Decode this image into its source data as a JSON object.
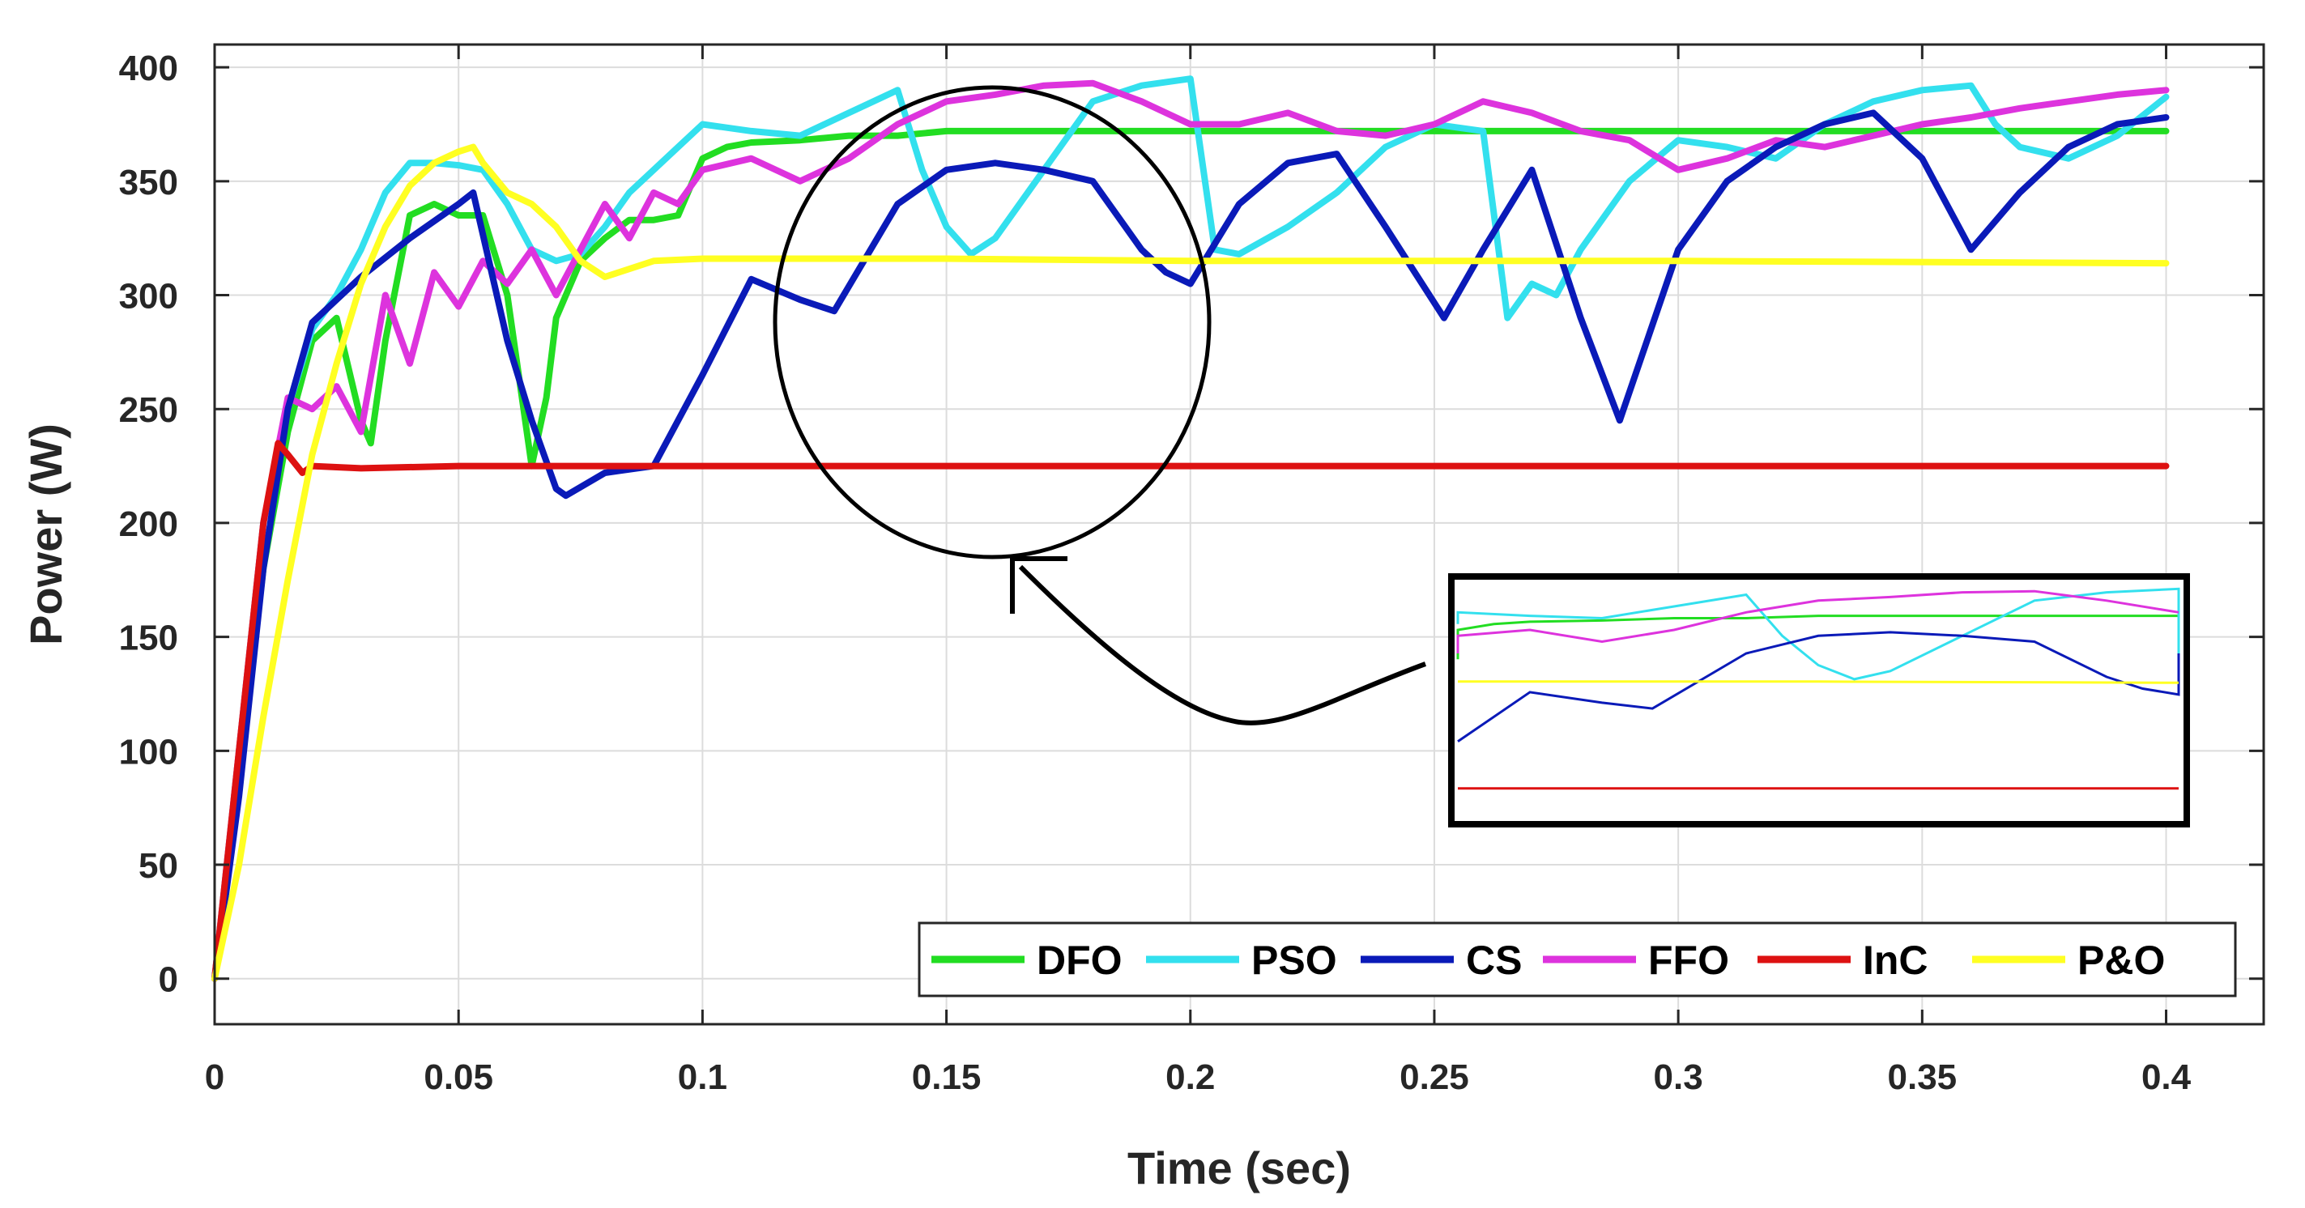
{
  "chart_data": {
    "type": "line",
    "xlabel": "Time (sec)",
    "ylabel": "Power (W)",
    "xlim": [
      0,
      0.42
    ],
    "ylim": [
      -20,
      410
    ],
    "xticks": [
      0,
      0.05,
      0.1,
      0.15,
      0.2,
      0.25,
      0.3,
      0.35,
      0.4
    ],
    "xtick_labels": [
      "0",
      "0.05",
      "0.1",
      "0.15",
      "0.2",
      "0.25",
      "0.3",
      "0.35",
      "0.4"
    ],
    "yticks": [
      0,
      50,
      100,
      150,
      200,
      250,
      300,
      350,
      400
    ],
    "ytick_labels": [
      "0",
      "50",
      "100",
      "150",
      "200",
      "250",
      "300",
      "350",
      "400"
    ],
    "grid": true,
    "legend_position": "bottom-right",
    "series": [
      {
        "name": "DFO",
        "color": "#22dd22",
        "x": [
          0,
          0.005,
          0.01,
          0.015,
          0.02,
          0.025,
          0.03,
          0.032,
          0.035,
          0.04,
          0.045,
          0.05,
          0.055,
          0.06,
          0.065,
          0.068,
          0.07,
          0.075,
          0.08,
          0.085,
          0.09,
          0.095,
          0.1,
          0.105,
          0.11,
          0.12,
          0.13,
          0.14,
          0.15,
          0.2,
          0.3,
          0.4
        ],
        "y": [
          0,
          90,
          180,
          240,
          280,
          290,
          245,
          235,
          280,
          335,
          340,
          335,
          335,
          300,
          225,
          255,
          290,
          315,
          325,
          333,
          333,
          335,
          360,
          365,
          367,
          368,
          370,
          370,
          372,
          372,
          372,
          372
        ]
      },
      {
        "name": "PSO",
        "color": "#33e0ee",
        "x": [
          0,
          0.005,
          0.01,
          0.015,
          0.02,
          0.025,
          0.03,
          0.035,
          0.04,
          0.045,
          0.05,
          0.055,
          0.06,
          0.065,
          0.07,
          0.075,
          0.08,
          0.085,
          0.09,
          0.095,
          0.1,
          0.11,
          0.12,
          0.13,
          0.14,
          0.145,
          0.15,
          0.155,
          0.16,
          0.17,
          0.18,
          0.19,
          0.2,
          0.205,
          0.21,
          0.22,
          0.23,
          0.24,
          0.25,
          0.26,
          0.265,
          0.27,
          0.275,
          0.28,
          0.29,
          0.3,
          0.31,
          0.32,
          0.33,
          0.34,
          0.35,
          0.36,
          0.365,
          0.37,
          0.38,
          0.39,
          0.4
        ],
        "y": [
          0,
          100,
          200,
          250,
          285,
          300,
          320,
          345,
          358,
          358,
          357,
          355,
          340,
          320,
          315,
          318,
          330,
          345,
          355,
          365,
          375,
          372,
          370,
          380,
          390,
          355,
          330,
          318,
          325,
          355,
          385,
          392,
          395,
          320,
          318,
          330,
          345,
          365,
          375,
          372,
          290,
          305,
          300,
          320,
          350,
          368,
          365,
          360,
          375,
          385,
          390,
          392,
          375,
          365,
          360,
          370,
          387
        ]
      },
      {
        "name": "CS",
        "color": "#0a1ab8",
        "x": [
          0,
          0.005,
          0.01,
          0.015,
          0.02,
          0.03,
          0.04,
          0.05,
          0.053,
          0.06,
          0.065,
          0.07,
          0.072,
          0.08,
          0.09,
          0.1,
          0.11,
          0.12,
          0.127,
          0.14,
          0.15,
          0.16,
          0.17,
          0.18,
          0.19,
          0.195,
          0.2,
          0.21,
          0.22,
          0.23,
          0.24,
          0.252,
          0.26,
          0.27,
          0.28,
          0.288,
          0.3,
          0.31,
          0.32,
          0.33,
          0.34,
          0.35,
          0.36,
          0.37,
          0.38,
          0.39,
          0.4
        ],
        "y": [
          0,
          80,
          180,
          250,
          288,
          308,
          325,
          340,
          345,
          280,
          245,
          215,
          212,
          222,
          225,
          265,
          307,
          298,
          293,
          340,
          355,
          358,
          355,
          350,
          320,
          310,
          305,
          340,
          358,
          362,
          330,
          290,
          320,
          355,
          290,
          245,
          320,
          350,
          365,
          375,
          380,
          360,
          320,
          345,
          365,
          375,
          378
        ]
      },
      {
        "name": "FFO",
        "color": "#dd33dd",
        "x": [
          0,
          0.005,
          0.01,
          0.015,
          0.02,
          0.025,
          0.03,
          0.035,
          0.04,
          0.045,
          0.05,
          0.055,
          0.06,
          0.065,
          0.07,
          0.075,
          0.08,
          0.085,
          0.09,
          0.095,
          0.1,
          0.11,
          0.12,
          0.13,
          0.14,
          0.15,
          0.16,
          0.17,
          0.18,
          0.19,
          0.2,
          0.21,
          0.22,
          0.23,
          0.24,
          0.25,
          0.26,
          0.27,
          0.28,
          0.29,
          0.3,
          0.31,
          0.32,
          0.33,
          0.34,
          0.35,
          0.36,
          0.37,
          0.38,
          0.39,
          0.4
        ],
        "y": [
          0,
          100,
          200,
          255,
          250,
          260,
          240,
          300,
          270,
          310,
          295,
          315,
          305,
          320,
          300,
          320,
          340,
          325,
          345,
          340,
          355,
          360,
          350,
          360,
          375,
          385,
          388,
          392,
          393,
          385,
          375,
          375,
          380,
          372,
          370,
          375,
          385,
          380,
          372,
          368,
          355,
          360,
          368,
          365,
          370,
          375,
          378,
          382,
          385,
          388,
          390
        ]
      },
      {
        "name": "InC",
        "color": "#dd1111",
        "x": [
          0,
          0.005,
          0.01,
          0.013,
          0.015,
          0.018,
          0.02,
          0.03,
          0.05,
          0.1,
          0.2,
          0.3,
          0.4
        ],
        "y": [
          0,
          100,
          200,
          235,
          230,
          222,
          225,
          224,
          225,
          225,
          225,
          225,
          225
        ]
      },
      {
        "name": "P&O",
        "color": "#ffff22",
        "x": [
          0,
          0.005,
          0.01,
          0.015,
          0.02,
          0.025,
          0.03,
          0.035,
          0.04,
          0.045,
          0.05,
          0.053,
          0.055,
          0.06,
          0.065,
          0.07,
          0.075,
          0.08,
          0.09,
          0.1,
          0.15,
          0.2,
          0.3,
          0.4
        ],
        "y": [
          0,
          50,
          115,
          175,
          230,
          270,
          305,
          330,
          348,
          358,
          363,
          365,
          358,
          345,
          340,
          330,
          315,
          308,
          315,
          316,
          316,
          315,
          315,
          314
        ]
      }
    ]
  }
}
